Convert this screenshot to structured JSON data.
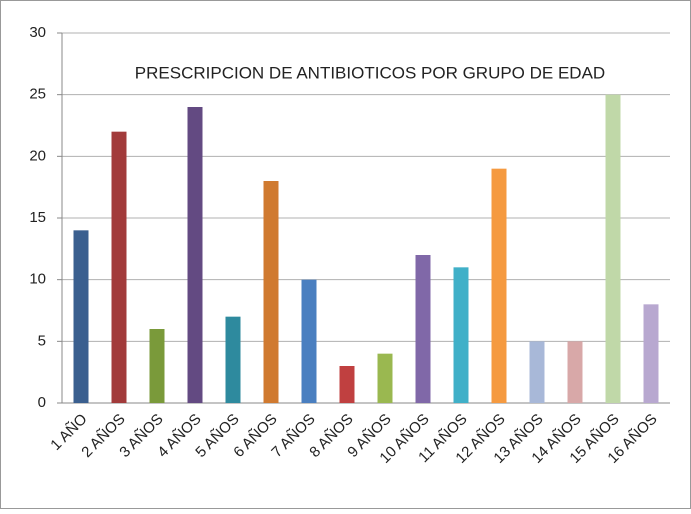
{
  "chart_data": {
    "type": "bar",
    "title": "PRESCRIPCION DE ANTIBIOTICOS POR GRUPO DE EDAD",
    "categories": [
      "1 AÑO",
      "2 AÑOS",
      "3 AÑOS",
      "4 AÑOS",
      "5 AÑOS",
      "6 AÑOS",
      "7 AÑOS",
      "8 AÑOS",
      "9 AÑOS",
      "10 AÑOS",
      "11 AÑOS",
      "12 AÑOS",
      "13 AÑOS",
      "14 AÑOS",
      "15 AÑOS",
      "16 AÑOS"
    ],
    "values": [
      14,
      22,
      6,
      24,
      7,
      18,
      10,
      3,
      4,
      12,
      11,
      19,
      5,
      5,
      25,
      8
    ],
    "colors": [
      "#3a5f8f",
      "#a23b3b",
      "#7a9a3a",
      "#634a82",
      "#2e8a9e",
      "#d07a30",
      "#4a7fc0",
      "#c04040",
      "#9ab850",
      "#8068a8",
      "#40b0c8",
      "#f59a40",
      "#a8b8d8",
      "#d8a8a8",
      "#c0d8a8",
      "#b8a8d0"
    ],
    "ylim": [
      0,
      30
    ],
    "yticks": [
      0,
      5,
      10,
      15,
      20,
      25,
      30
    ],
    "grid": true
  }
}
